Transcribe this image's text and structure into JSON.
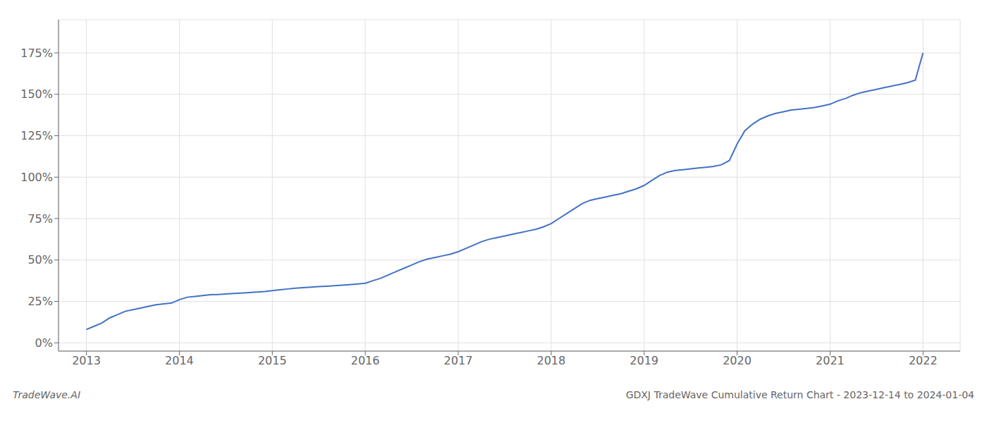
{
  "chart_data": {
    "type": "line",
    "title": "GDXJ TradeWave Cumulative Return Chart - 2023-12-14 to 2024-01-04",
    "annotations": [
      "TradeWave.AI"
    ],
    "color": "#4472c4",
    "grid": true,
    "x": [
      2013.0,
      2013.083,
      2013.167,
      2013.25,
      2013.333,
      2013.417,
      2013.5,
      2013.583,
      2013.667,
      2013.75,
      2013.833,
      2013.917,
      2014.0,
      2014.083,
      2014.167,
      2014.25,
      2014.333,
      2014.417,
      2014.5,
      2014.583,
      2014.667,
      2014.75,
      2014.833,
      2014.917,
      2015.0,
      2015.083,
      2015.167,
      2015.25,
      2015.333,
      2015.417,
      2015.5,
      2015.583,
      2015.667,
      2015.75,
      2015.833,
      2015.917,
      2016.0,
      2016.083,
      2016.167,
      2016.25,
      2016.333,
      2016.417,
      2016.5,
      2016.583,
      2016.667,
      2016.75,
      2016.833,
      2016.917,
      2017.0,
      2017.083,
      2017.167,
      2017.25,
      2017.333,
      2017.417,
      2017.5,
      2017.583,
      2017.667,
      2017.75,
      2017.833,
      2017.917,
      2018.0,
      2018.083,
      2018.167,
      2018.25,
      2018.333,
      2018.417,
      2018.5,
      2018.583,
      2018.667,
      2018.75,
      2018.833,
      2018.917,
      2019.0,
      2019.083,
      2019.167,
      2019.25,
      2019.333,
      2019.417,
      2019.5,
      2019.583,
      2019.667,
      2019.75,
      2019.833,
      2019.917,
      2020.0,
      2020.083,
      2020.167,
      2020.25,
      2020.333,
      2020.417,
      2020.5,
      2020.583,
      2020.667,
      2020.75,
      2020.833,
      2020.917,
      2021.0,
      2021.083,
      2021.167,
      2021.25,
      2021.333,
      2021.417,
      2021.5,
      2021.583,
      2021.667,
      2021.75,
      2021.833,
      2021.917,
      2022.0
    ],
    "values": [
      8,
      10,
      12,
      15,
      17,
      19,
      20,
      21,
      22,
      23,
      23.5,
      24,
      26,
      27.5,
      28,
      28.5,
      29,
      29.2,
      29.5,
      29.8,
      30,
      30.3,
      30.6,
      31,
      31.5,
      32,
      32.5,
      33,
      33.3,
      33.6,
      33.9,
      34.2,
      34.5,
      34.8,
      35.1,
      35.5,
      36,
      37.5,
      39,
      41,
      43,
      45,
      47,
      49,
      50.5,
      51.5,
      52.5,
      53.5,
      55,
      57,
      59,
      61,
      62.5,
      63.5,
      64.5,
      65.5,
      66.5,
      67.5,
      68.5,
      70,
      72,
      75,
      78,
      81,
      84,
      86,
      87,
      88,
      89,
      90,
      91.5,
      93,
      95,
      98,
      101,
      103,
      104,
      104.5,
      105,
      105.5,
      106,
      106.5,
      107.5,
      110,
      120,
      128,
      132,
      135,
      137,
      138.5,
      139.5,
      140.5,
      141,
      141.5,
      142,
      143,
      144,
      146,
      147.5,
      149.5,
      151,
      152,
      153,
      154,
      155,
      156,
      157,
      158.5,
      175
    ],
    "xlim": [
      2012.7,
      2022.4
    ],
    "xticks": [
      2013,
      2014,
      2015,
      2016,
      2017,
      2018,
      2019,
      2020,
      2021,
      2022
    ],
    "ylim": [
      -5,
      195
    ],
    "yticks": [
      {
        "value": 0,
        "label": "0%"
      },
      {
        "value": 25,
        "label": "25%"
      },
      {
        "value": 50,
        "label": "50%"
      },
      {
        "value": 75,
        "label": "75%"
      },
      {
        "value": 100,
        "label": "100%"
      },
      {
        "value": 125,
        "label": "125%"
      },
      {
        "value": 150,
        "label": "150%"
      },
      {
        "value": 175,
        "label": "175%"
      }
    ]
  }
}
